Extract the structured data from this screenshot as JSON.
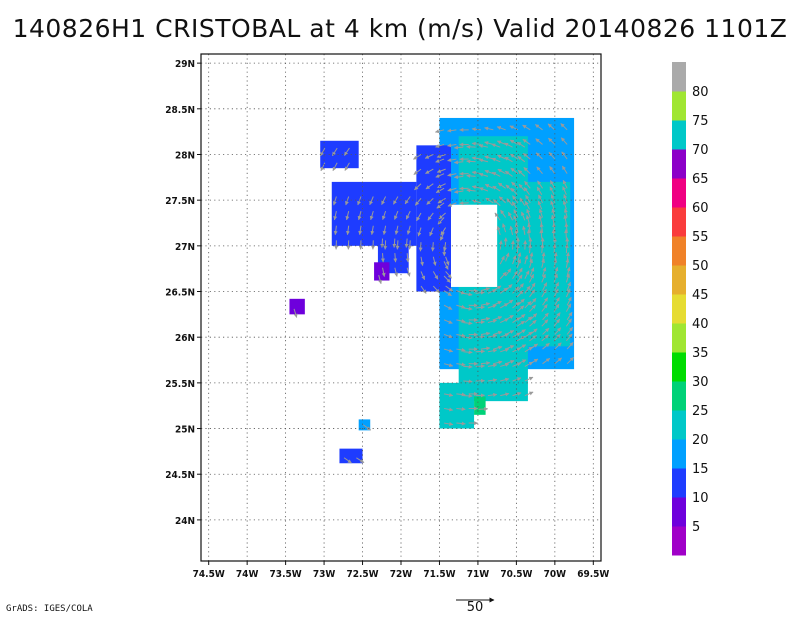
{
  "title": "140826H1 CRISTOBAL at 4 km (m/s) Valid 20140826 1101Z",
  "credit": "GrADS: IGES/COLA",
  "reference_vector_label": "50",
  "chart_data": {
    "type": "heatmap",
    "variable": "wind speed (m/s) with wind vectors",
    "xlim": [
      -74.6,
      -69.4
    ],
    "ylim": [
      23.55,
      29.1
    ],
    "x_tick_labels": [
      "74.5W",
      "74W",
      "73.5W",
      "73W",
      "72.5W",
      "72W",
      "71.5W",
      "71W",
      "70.5W",
      "70W",
      "69.5W"
    ],
    "x_tick_values": [
      -74.5,
      -74,
      -73.5,
      -73,
      -72.5,
      -72,
      -71.5,
      -71,
      -70.5,
      -70,
      -69.5
    ],
    "y_tick_labels": [
      "24N",
      "24.5N",
      "25N",
      "25.5N",
      "26N",
      "26.5N",
      "27N",
      "27.5N",
      "28N",
      "28.5N",
      "29N"
    ],
    "y_tick_values": [
      24,
      24.5,
      25,
      25.5,
      26,
      26.5,
      27,
      27.5,
      28,
      28.5,
      29
    ],
    "grid": "dotted",
    "colorbar": {
      "labels": [
        "5",
        "10",
        "15",
        "20",
        "25",
        "30",
        "35",
        "40",
        "45",
        "50",
        "55",
        "60",
        "65",
        "70",
        "75",
        "80"
      ],
      "colors": [
        "#a000c8",
        "#6e00dc",
        "#1e3cff",
        "#00a0ff",
        "#00c8c8",
        "#00d278",
        "#00dc00",
        "#a0e632",
        "#e6dc32",
        "#e6af2d",
        "#f08228",
        "#fa3c3c",
        "#f00082",
        "#8c00c8",
        "#00c8c8",
        "#a0e632",
        "#aaaaaa"
      ]
    },
    "regions": [
      {
        "speed": 18,
        "lon0": -71.5,
        "lon1": -69.75,
        "lat0": 25.65,
        "lat1": 28.4
      },
      {
        "speed": 22,
        "lon0": -71.25,
        "lon1": -70.35,
        "lat0": 25.3,
        "lat1": 28.2
      },
      {
        "speed": 24,
        "lon0": -70.55,
        "lon1": -69.8,
        "lat0": 25.9,
        "lat1": 27.7
      },
      {
        "speed": 13,
        "lon0": -71.8,
        "lon1": -71.35,
        "lat0": 26.5,
        "lat1": 28.1
      },
      {
        "speed": 12,
        "lon0": -72.9,
        "lon1": -71.8,
        "lat0": 27.0,
        "lat1": 27.7
      },
      {
        "speed": 12,
        "lon0": -72.3,
        "lon1": -71.9,
        "lat0": 26.7,
        "lat1": 27.1
      },
      {
        "speed": 21,
        "lon0": -71.5,
        "lon1": -71.05,
        "lat0": 25.0,
        "lat1": 25.5
      },
      {
        "speed": 28,
        "lon0": -71.05,
        "lon1": -70.9,
        "lat0": 25.15,
        "lat1": 25.35
      },
      {
        "speed": 11,
        "lon0": -73.05,
        "lon1": -72.55,
        "lat0": 27.85,
        "lat1": 28.15
      },
      {
        "speed": 9,
        "lon0": -73.45,
        "lon1": -73.25,
        "lat0": 26.25,
        "lat1": 26.42
      },
      {
        "speed": 11,
        "lon0": -72.8,
        "lon1": -72.5,
        "lat0": 24.62,
        "lat1": 24.78
      },
      {
        "speed": 16,
        "lon0": -72.55,
        "lon1": -72.4,
        "lat0": 24.98,
        "lat1": 25.1
      },
      {
        "speed": 6,
        "lon0": -72.35,
        "lon1": -72.15,
        "lat0": 26.62,
        "lat1": 26.82
      }
    ]
  }
}
